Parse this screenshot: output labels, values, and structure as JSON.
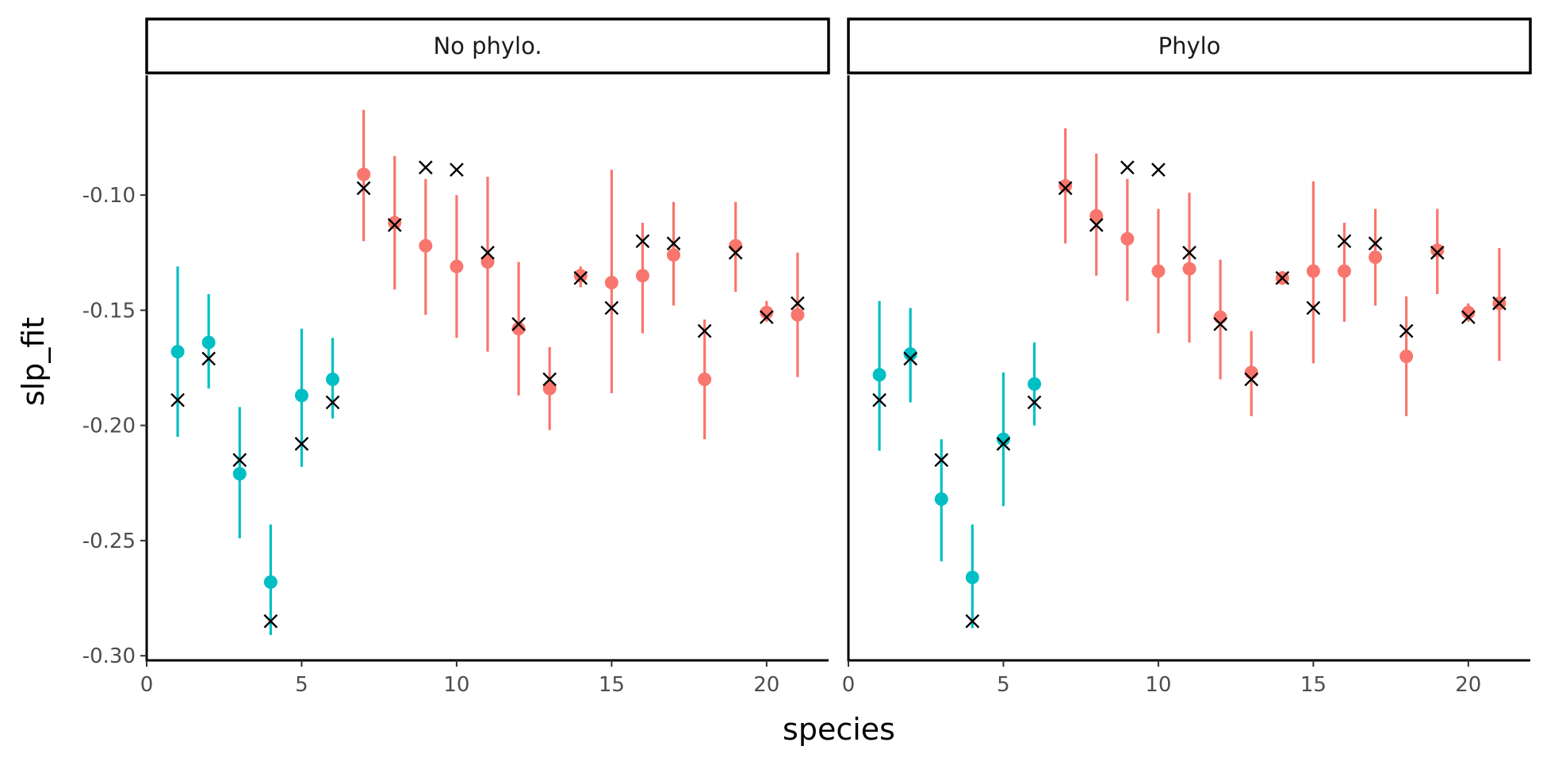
{
  "chart_data": {
    "type": "scatter",
    "xlabel": "species",
    "ylabel": "slp_fit",
    "xlim": [
      0,
      22
    ],
    "ylim": [
      -0.302,
      -0.048
    ],
    "x_ticks": [
      0,
      5,
      10,
      15,
      20
    ],
    "y_ticks": [
      -0.1,
      -0.15,
      -0.2,
      -0.25,
      -0.3
    ],
    "y_tick_labels": [
      "-0.10",
      "-0.15",
      "-0.20",
      "-0.25",
      "-0.30"
    ],
    "grid": false,
    "legend": "none",
    "colors": {
      "group_a": "#00BFC4",
      "group_b": "#F8766D",
      "truth_marker": "#000000"
    },
    "truth": [
      -0.189,
      -0.171,
      -0.215,
      -0.285,
      -0.208,
      -0.19,
      -0.097,
      -0.113,
      -0.088,
      -0.089,
      -0.125,
      -0.156,
      -0.18,
      -0.136,
      -0.149,
      -0.12,
      -0.121,
      -0.159,
      -0.125,
      -0.153,
      -0.147
    ],
    "panels": [
      {
        "strip": "No phylo.",
        "points": [
          {
            "x": 1,
            "y": -0.168,
            "lo": -0.205,
            "hi": -0.131,
            "group": "group_a"
          },
          {
            "x": 2,
            "y": -0.164,
            "lo": -0.184,
            "hi": -0.143,
            "group": "group_a"
          },
          {
            "x": 3,
            "y": -0.221,
            "lo": -0.249,
            "hi": -0.192,
            "group": "group_a"
          },
          {
            "x": 4,
            "y": -0.268,
            "lo": -0.291,
            "hi": -0.243,
            "group": "group_a"
          },
          {
            "x": 5,
            "y": -0.187,
            "lo": -0.218,
            "hi": -0.158,
            "group": "group_a"
          },
          {
            "x": 6,
            "y": -0.18,
            "lo": -0.197,
            "hi": -0.162,
            "group": "group_a"
          },
          {
            "x": 7,
            "y": -0.091,
            "lo": -0.12,
            "hi": -0.063,
            "group": "group_b"
          },
          {
            "x": 8,
            "y": -0.112,
            "lo": -0.141,
            "hi": -0.083,
            "group": "group_b"
          },
          {
            "x": 9,
            "y": -0.122,
            "lo": -0.152,
            "hi": -0.093,
            "group": "group_b"
          },
          {
            "x": 10,
            "y": -0.131,
            "lo": -0.162,
            "hi": -0.1,
            "group": "group_b"
          },
          {
            "x": 11,
            "y": -0.129,
            "lo": -0.168,
            "hi": -0.092,
            "group": "group_b"
          },
          {
            "x": 12,
            "y": -0.158,
            "lo": -0.187,
            "hi": -0.129,
            "group": "group_b"
          },
          {
            "x": 13,
            "y": -0.184,
            "lo": -0.202,
            "hi": -0.166,
            "group": "group_b"
          },
          {
            "x": 14,
            "y": -0.135,
            "lo": -0.14,
            "hi": -0.131,
            "group": "group_b"
          },
          {
            "x": 15,
            "y": -0.138,
            "lo": -0.186,
            "hi": -0.089,
            "group": "group_b"
          },
          {
            "x": 16,
            "y": -0.135,
            "lo": -0.16,
            "hi": -0.112,
            "group": "group_b"
          },
          {
            "x": 17,
            "y": -0.126,
            "lo": -0.148,
            "hi": -0.103,
            "group": "group_b"
          },
          {
            "x": 18,
            "y": -0.18,
            "lo": -0.206,
            "hi": -0.154,
            "group": "group_b"
          },
          {
            "x": 19,
            "y": -0.122,
            "lo": -0.142,
            "hi": -0.103,
            "group": "group_b"
          },
          {
            "x": 20,
            "y": -0.151,
            "lo": -0.155,
            "hi": -0.146,
            "group": "group_b"
          },
          {
            "x": 21,
            "y": -0.152,
            "lo": -0.179,
            "hi": -0.125,
            "group": "group_b"
          }
        ]
      },
      {
        "strip": "Phylo",
        "points": [
          {
            "x": 1,
            "y": -0.178,
            "lo": -0.211,
            "hi": -0.146,
            "group": "group_a"
          },
          {
            "x": 2,
            "y": -0.169,
            "lo": -0.19,
            "hi": -0.149,
            "group": "group_a"
          },
          {
            "x": 3,
            "y": -0.232,
            "lo": -0.259,
            "hi": -0.206,
            "group": "group_a"
          },
          {
            "x": 4,
            "y": -0.266,
            "lo": -0.288,
            "hi": -0.243,
            "group": "group_a"
          },
          {
            "x": 5,
            "y": -0.206,
            "lo": -0.235,
            "hi": -0.177,
            "group": "group_a"
          },
          {
            "x": 6,
            "y": -0.182,
            "lo": -0.2,
            "hi": -0.164,
            "group": "group_a"
          },
          {
            "x": 7,
            "y": -0.096,
            "lo": -0.121,
            "hi": -0.071,
            "group": "group_b"
          },
          {
            "x": 8,
            "y": -0.109,
            "lo": -0.135,
            "hi": -0.082,
            "group": "group_b"
          },
          {
            "x": 9,
            "y": -0.119,
            "lo": -0.146,
            "hi": -0.093,
            "group": "group_b"
          },
          {
            "x": 10,
            "y": -0.133,
            "lo": -0.16,
            "hi": -0.106,
            "group": "group_b"
          },
          {
            "x": 11,
            "y": -0.132,
            "lo": -0.164,
            "hi": -0.099,
            "group": "group_b"
          },
          {
            "x": 12,
            "y": -0.153,
            "lo": -0.18,
            "hi": -0.128,
            "group": "group_b"
          },
          {
            "x": 13,
            "y": -0.177,
            "lo": -0.196,
            "hi": -0.159,
            "group": "group_b"
          },
          {
            "x": 14,
            "y": -0.136,
            "lo": -0.139,
            "hi": -0.133,
            "group": "group_b"
          },
          {
            "x": 15,
            "y": -0.133,
            "lo": -0.173,
            "hi": -0.094,
            "group": "group_b"
          },
          {
            "x": 16,
            "y": -0.133,
            "lo": -0.155,
            "hi": -0.112,
            "group": "group_b"
          },
          {
            "x": 17,
            "y": -0.127,
            "lo": -0.148,
            "hi": -0.106,
            "group": "group_b"
          },
          {
            "x": 18,
            "y": -0.17,
            "lo": -0.196,
            "hi": -0.144,
            "group": "group_b"
          },
          {
            "x": 19,
            "y": -0.124,
            "lo": -0.143,
            "hi": -0.106,
            "group": "group_b"
          },
          {
            "x": 20,
            "y": -0.151,
            "lo": -0.155,
            "hi": -0.147,
            "group": "group_b"
          },
          {
            "x": 21,
            "y": -0.147,
            "lo": -0.172,
            "hi": -0.123,
            "group": "group_b"
          }
        ]
      }
    ]
  }
}
